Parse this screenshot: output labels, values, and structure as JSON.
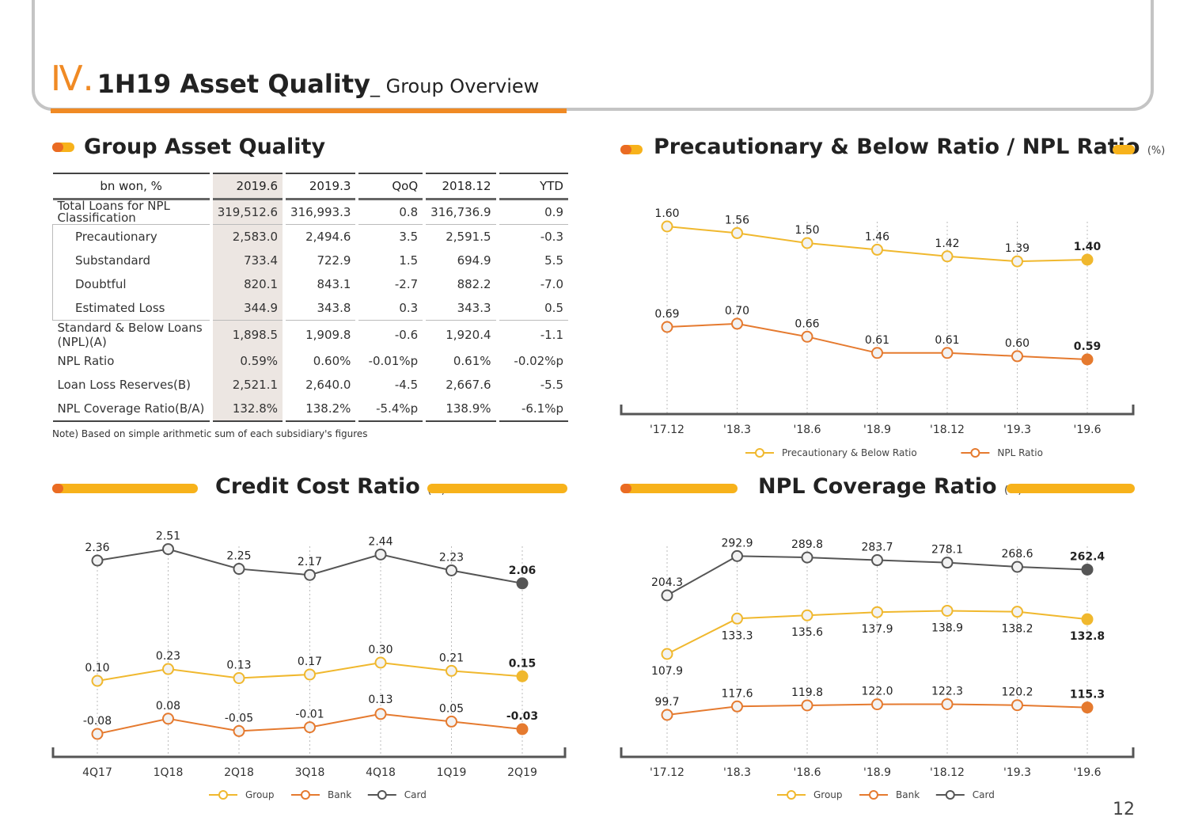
{
  "header": {
    "roman": "Ⅳ.",
    "title": "1H19 Asset Quality",
    "sep": "_",
    "subtitle": " Group Overview"
  },
  "colors": {
    "orange": "#f08a24",
    "yellow": "#f0b82e",
    "bank": "#e57a2f",
    "card": "#555555",
    "grey": "#c4c4c4"
  },
  "table": {
    "title": "Group Asset Quality",
    "headers": [
      "bn won, %",
      "2019.6",
      "2019.3",
      "QoQ",
      "2018.12",
      "YTD"
    ],
    "rows": [
      {
        "label": "Total Loans for NPL Classification",
        "values": [
          "319,512.6",
          "316,993.3",
          "0.8",
          "316,736.9",
          "0.9"
        ]
      },
      {
        "label": "Precautionary",
        "values": [
          "2,583.0",
          "2,494.6",
          "3.5",
          "2,591.5",
          "-0.3"
        ]
      },
      {
        "label": "Substandard",
        "values": [
          "733.4",
          "722.9",
          "1.5",
          "694.9",
          "5.5"
        ]
      },
      {
        "label": "Doubtful",
        "values": [
          "820.1",
          "843.1",
          "-2.7",
          "882.2",
          "-7.0"
        ]
      },
      {
        "label": "Estimated Loss",
        "values": [
          "344.9",
          "343.8",
          "0.3",
          "343.3",
          "0.5"
        ]
      },
      {
        "label": "Standard & Below Loans (NPL)(A)",
        "values": [
          "1,898.5",
          "1,909.8",
          "-0.6",
          "1,920.4",
          "-1.1"
        ]
      },
      {
        "label": "NPL Ratio",
        "values": [
          "0.59%",
          "0.60%",
          "-0.01%p",
          "0.61%",
          "-0.02%p"
        ]
      },
      {
        "label": "Loan Loss Reserves(B)",
        "values": [
          "2,521.1",
          "2,640.0",
          "-4.5",
          "2,667.6",
          "-5.5"
        ]
      },
      {
        "label": "NPL Coverage Ratio(B/A)",
        "values": [
          "132.8%",
          "138.2%",
          "-5.4%p",
          "138.9%",
          "-6.1%p"
        ]
      }
    ],
    "note": "Note) Based on simple arithmetic sum of each subsidiary's figures"
  },
  "chart_titles": {
    "precautionary": "Precautionary & Below Ratio / NPL Ratio",
    "credit_cost": "Credit Cost Ratio",
    "coverage": "NPL Coverage Ratio",
    "unit": "(%)"
  },
  "page_number": "12",
  "chart_data": [
    {
      "type": "line",
      "title": "Precautionary & Below Ratio / NPL Ratio",
      "unit": "(%)",
      "categories": [
        "'17.12",
        "'18.3",
        "'18.6",
        "'18.9",
        "'18.12",
        "'19.3",
        "'19.6"
      ],
      "series": [
        {
          "name": "Precautionary & Below Ratio",
          "color": "#f0b82e",
          "values": [
            1.6,
            1.56,
            1.5,
            1.46,
            1.42,
            1.39,
            1.4
          ],
          "labels": [
            "1.60",
            "1.56",
            "1.50",
            "1.46",
            "1.42",
            "1.39",
            "1.40"
          ]
        },
        {
          "name": "NPL Ratio",
          "color": "#e57a2f",
          "values": [
            0.69,
            0.7,
            0.66,
            0.61,
            0.61,
            0.6,
            0.59
          ],
          "labels": [
            "0.69",
            "0.70",
            "0.66",
            "0.61",
            "0.61",
            "0.60",
            "0.59"
          ]
        }
      ]
    },
    {
      "type": "line",
      "title": "Credit Cost Ratio",
      "unit": "(%)",
      "categories": [
        "4Q17",
        "1Q18",
        "2Q18",
        "3Q18",
        "4Q18",
        "1Q19",
        "2Q19"
      ],
      "series": [
        {
          "name": "Group",
          "color": "#f0b82e",
          "values": [
            0.1,
            0.23,
            0.13,
            0.17,
            0.3,
            0.21,
            0.15
          ],
          "labels": [
            "0.10",
            "0.23",
            "0.13",
            "0.17",
            "0.30",
            "0.21",
            "0.15"
          ]
        },
        {
          "name": "Bank",
          "color": "#e57a2f",
          "values": [
            -0.08,
            0.08,
            -0.05,
            -0.01,
            0.13,
            0.05,
            -0.03
          ],
          "labels": [
            "-0.08",
            "0.08",
            "-0.05",
            "-0.01",
            "0.13",
            "0.05",
            "-0.03"
          ]
        },
        {
          "name": "Card",
          "color": "#555555",
          "values": [
            2.36,
            2.51,
            2.25,
            2.17,
            2.44,
            2.23,
            2.06
          ],
          "labels": [
            "2.36",
            "2.51",
            "2.25",
            "2.17",
            "2.44",
            "2.23",
            "2.06"
          ]
        }
      ]
    },
    {
      "type": "line",
      "title": "NPL Coverage Ratio",
      "unit": "(%)",
      "categories": [
        "'17.12",
        "'18.3",
        "'18.6",
        "'18.9",
        "'18.12",
        "'19.3",
        "'19.6"
      ],
      "series": [
        {
          "name": "Group",
          "color": "#f0b82e",
          "values": [
            107.9,
            133.3,
            135.6,
            137.9,
            138.9,
            138.2,
            132.8
          ],
          "labels": [
            "107.9",
            "133.3",
            "135.6",
            "137.9",
            "138.9",
            "138.2",
            "132.8"
          ]
        },
        {
          "name": "Bank",
          "color": "#e57a2f",
          "values": [
            99.7,
            117.6,
            119.8,
            122.0,
            122.3,
            120.2,
            115.3
          ],
          "labels": [
            "99.7",
            "117.6",
            "119.8",
            "122.0",
            "122.3",
            "120.2",
            "115.3"
          ]
        },
        {
          "name": "Card",
          "color": "#555555",
          "values": [
            204.3,
            292.9,
            289.8,
            283.7,
            278.1,
            268.6,
            262.4
          ],
          "labels": [
            "204.3",
            "292.9",
            "289.8",
            "283.7",
            "278.1",
            "268.6",
            "262.4"
          ]
        }
      ]
    }
  ]
}
